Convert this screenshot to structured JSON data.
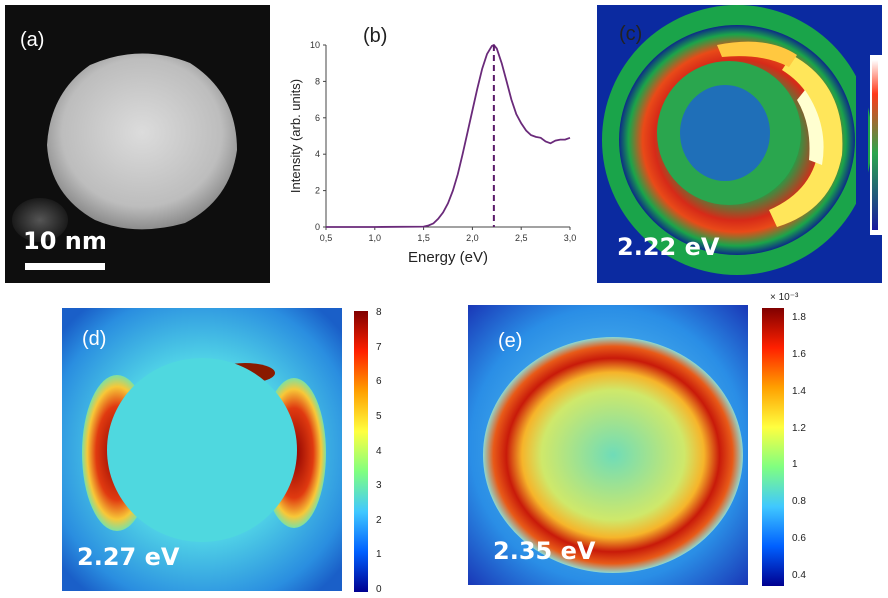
{
  "panels": {
    "a": {
      "label": "(a)",
      "scalebar_text": "10 nm"
    },
    "b": {
      "label": "(b)"
    },
    "c": {
      "label": "(c)",
      "energy": "2.22 eV"
    },
    "d": {
      "label": "(d)",
      "energy": "2.27 eV",
      "colorbar_ticks": [
        "8",
        "7",
        "6",
        "5",
        "4",
        "3",
        "2",
        "1",
        "0"
      ]
    },
    "e": {
      "label": "(e)",
      "energy": "2.35 eV",
      "colorbar_exponent": "× 10⁻³",
      "colorbar_ticks": [
        "1.8",
        "1.6",
        "1.4",
        "1.2",
        "1",
        "0.8",
        "0.6",
        "0.4"
      ]
    }
  },
  "chart_data": {
    "type": "line",
    "xlabel": "Energy (eV)",
    "ylabel": "Intensity (arb. units)",
    "xlim": [
      0.5,
      3.0
    ],
    "ylim": [
      0,
      10
    ],
    "xticks": [
      "0,5",
      "1,0",
      "1,5",
      "2,0",
      "2,5",
      "3,0"
    ],
    "yticks": [
      "0",
      "2",
      "4",
      "6",
      "8",
      "10"
    ],
    "series": [
      {
        "color": "#6a2a7a",
        "x": [
          0.5,
          1.0,
          1.5,
          1.55,
          1.6,
          1.65,
          1.7,
          1.75,
          1.8,
          1.85,
          1.9,
          1.95,
          2.0,
          2.05,
          2.1,
          2.15,
          2.2,
          2.22,
          2.25,
          2.3,
          2.35,
          2.4,
          2.45,
          2.5,
          2.55,
          2.6,
          2.65,
          2.7,
          2.75,
          2.8,
          2.85,
          2.9,
          2.95,
          3.0
        ],
        "y": [
          0,
          0,
          0.02,
          0.08,
          0.2,
          0.45,
          0.8,
          1.3,
          2.0,
          2.9,
          4.0,
          5.2,
          6.4,
          7.6,
          8.7,
          9.5,
          9.95,
          10.0,
          9.8,
          9.0,
          8.0,
          7.0,
          6.2,
          5.7,
          5.3,
          5.05,
          4.95,
          4.9,
          4.7,
          4.6,
          4.75,
          4.8,
          4.8,
          4.9
        ]
      }
    ],
    "marker_line": {
      "x": 2.22,
      "style": "dashed"
    },
    "grid": false
  }
}
